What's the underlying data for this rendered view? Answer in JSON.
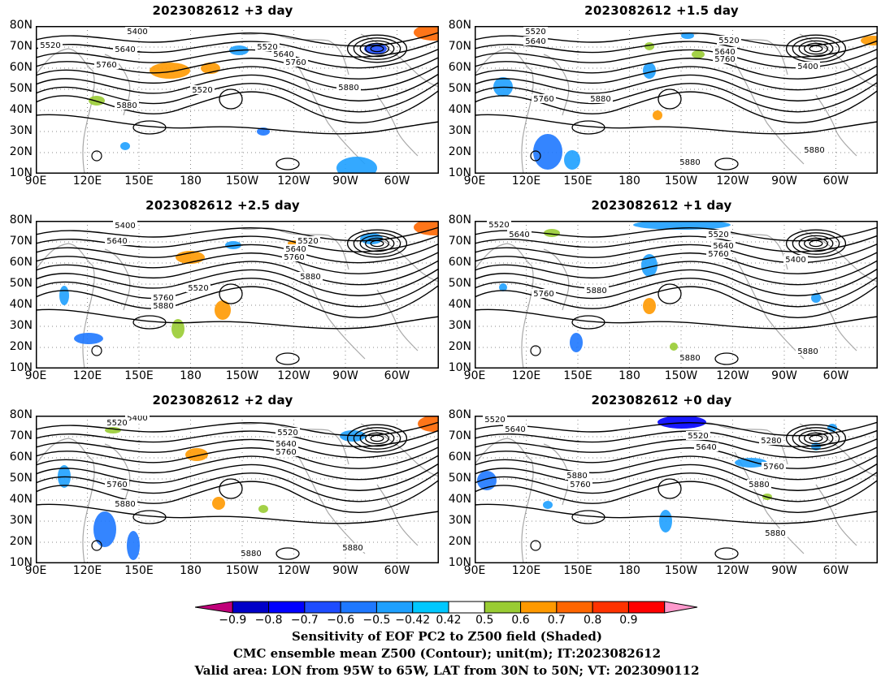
{
  "panels": [
    {
      "title": "2023082612 +3 day",
      "labels": [
        "5400",
        "5520",
        "5640",
        "5760",
        "5520",
        "5640",
        "5760",
        "5520",
        "5880",
        "5880"
      ]
    },
    {
      "title": "2023082612 +1.5 day",
      "labels": [
        "5520",
        "5640",
        "5520",
        "5640",
        "5760",
        "5400",
        "5760",
        "5880",
        "5880",
        "5880"
      ]
    },
    {
      "title": "2023082612 +2.5 day",
      "labels": [
        "5400",
        "5640",
        "5520",
        "5640",
        "5760",
        "5520",
        "5880",
        "5760",
        "5880"
      ]
    },
    {
      "title": "2023082612 +1 day",
      "labels": [
        "5520",
        "5640",
        "5520",
        "5640",
        "5760",
        "5400",
        "5760",
        "5880",
        "5880",
        "5880"
      ]
    },
    {
      "title": "2023082612 +2 day",
      "labels": [
        "5400",
        "5520",
        "5520",
        "5640",
        "5760",
        "5760",
        "5880",
        "5880",
        "5880"
      ]
    },
    {
      "title": "2023082612 +0 day",
      "labels": [
        "5520",
        "5640",
        "5520",
        "5640",
        "5280",
        "5760",
        "5880",
        "5760",
        "5880",
        "5880"
      ]
    }
  ],
  "axes": {
    "lat_labels": [
      "80N",
      "70N",
      "60N",
      "50N",
      "40N",
      "30N",
      "20N",
      "10N"
    ],
    "lon_labels": [
      "90E",
      "120E",
      "150E",
      "180",
      "150W",
      "120W",
      "90W",
      "60W"
    ]
  },
  "colorbar": {
    "labels": [
      "−0.9",
      "−0.8",
      "−0.7",
      "−0.6",
      "−0.5",
      "−0.42",
      "0.42",
      "0.5",
      "0.6",
      "0.7",
      "0.8",
      "0.9"
    ],
    "colors": [
      "#c0007a",
      "#0000c8",
      "#0000ff",
      "#1e4cff",
      "#1e78ff",
      "#1ea0ff",
      "#00c8ff",
      "#ffffff",
      "#99cc33",
      "#ff9900",
      "#ff6600",
      "#ff3300",
      "#ff0000",
      "#ff99cc"
    ]
  },
  "caption": {
    "line1": "Sensitivity of EOF PC2 to Z500 field (Shaded)",
    "line2": "CMC ensemble mean Z500 (Contour); unit(m); IT:2023082612",
    "line3": "Valid area: LON from 95W to 65W, LAT from 30N to 50N; VT: 2023090112"
  }
}
